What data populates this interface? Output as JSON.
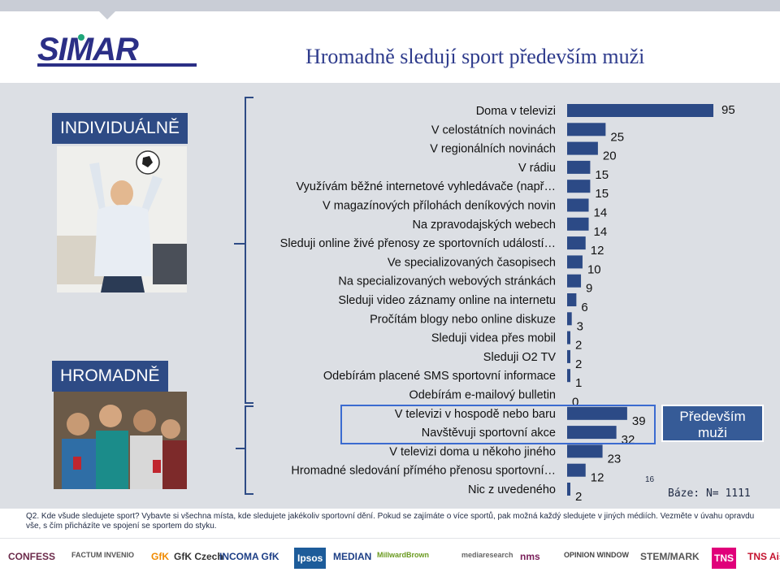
{
  "header": {
    "logo_text": "SIMAR",
    "title": "Hromadně sledují sport především muži"
  },
  "labels": {
    "individual": "INDIVIDUÁLNĚ",
    "group": "HROMADNĚ"
  },
  "callout": {
    "line1": "Především",
    "line2": "muži"
  },
  "base": "Báze: N= 1111",
  "side_note": "16",
  "question": "Q2. Kde všude sledujete sport? Vybavte si všechna místa, kde sledujete jakékoliv sportovní dění. Pokud se zajímáte o více sportů, pak možná každý sledujete v jiných médiích. Vezměte v úvahu opravdu vše, s čím přicházíte ve spojení se sportem do styku.",
  "footer_logos": [
    "CONFESS",
    "FACTUM INVENIO",
    "GfK",
    "GfK Czech",
    "INCOMA GfK",
    "Ipsos",
    "MEDIAN",
    "MillwardBrown",
    "mediaresearch",
    "nms",
    "OPINION WINDOW",
    "STEM/MARK",
    "TNS",
    "TNS Aisa"
  ],
  "colors": {
    "bar": "#2c4a86",
    "title": "#2e3b8c",
    "label_box": "#2e4b85",
    "highlight": "#3b6bd0",
    "band": "#dcdfe4"
  },
  "chart_data": {
    "type": "bar",
    "orientation": "horizontal",
    "categories": [
      "Doma v televizi",
      "V celostátních novinách",
      "V regionálních novinách",
      "V rádiu",
      "Využívám běžné internetové vyhledávače (např…",
      "V magazínových přílohách deníkových novin",
      "Na zpravodajských webech",
      "Sleduji online živé přenosy ze sportovních událostí…",
      "Ve specializovaných časopisech",
      "Na specializovaných webových stránkách",
      "Sleduji video záznamy online na internetu",
      "Pročítám blogy nebo online diskuze",
      "Sleduji videa přes mobil",
      "Sleduji O2 TV",
      "Odebírám placené SMS sportovní informace",
      "Odebírám e-mailový bulletin",
      "V televizi v hospodě nebo baru",
      "Navštěvuji sportovní akce",
      "V televizi doma u někoho jiného",
      "Hromadné sledování přímého přenosu sportovní…",
      "Nic z uvedeného"
    ],
    "values": [
      95,
      25,
      20,
      15,
      15,
      14,
      14,
      12,
      10,
      9,
      6,
      3,
      2,
      2,
      1,
      0,
      39,
      32,
      23,
      12,
      2
    ],
    "xlim": [
      0,
      100
    ],
    "grid": false,
    "legend": "none"
  }
}
